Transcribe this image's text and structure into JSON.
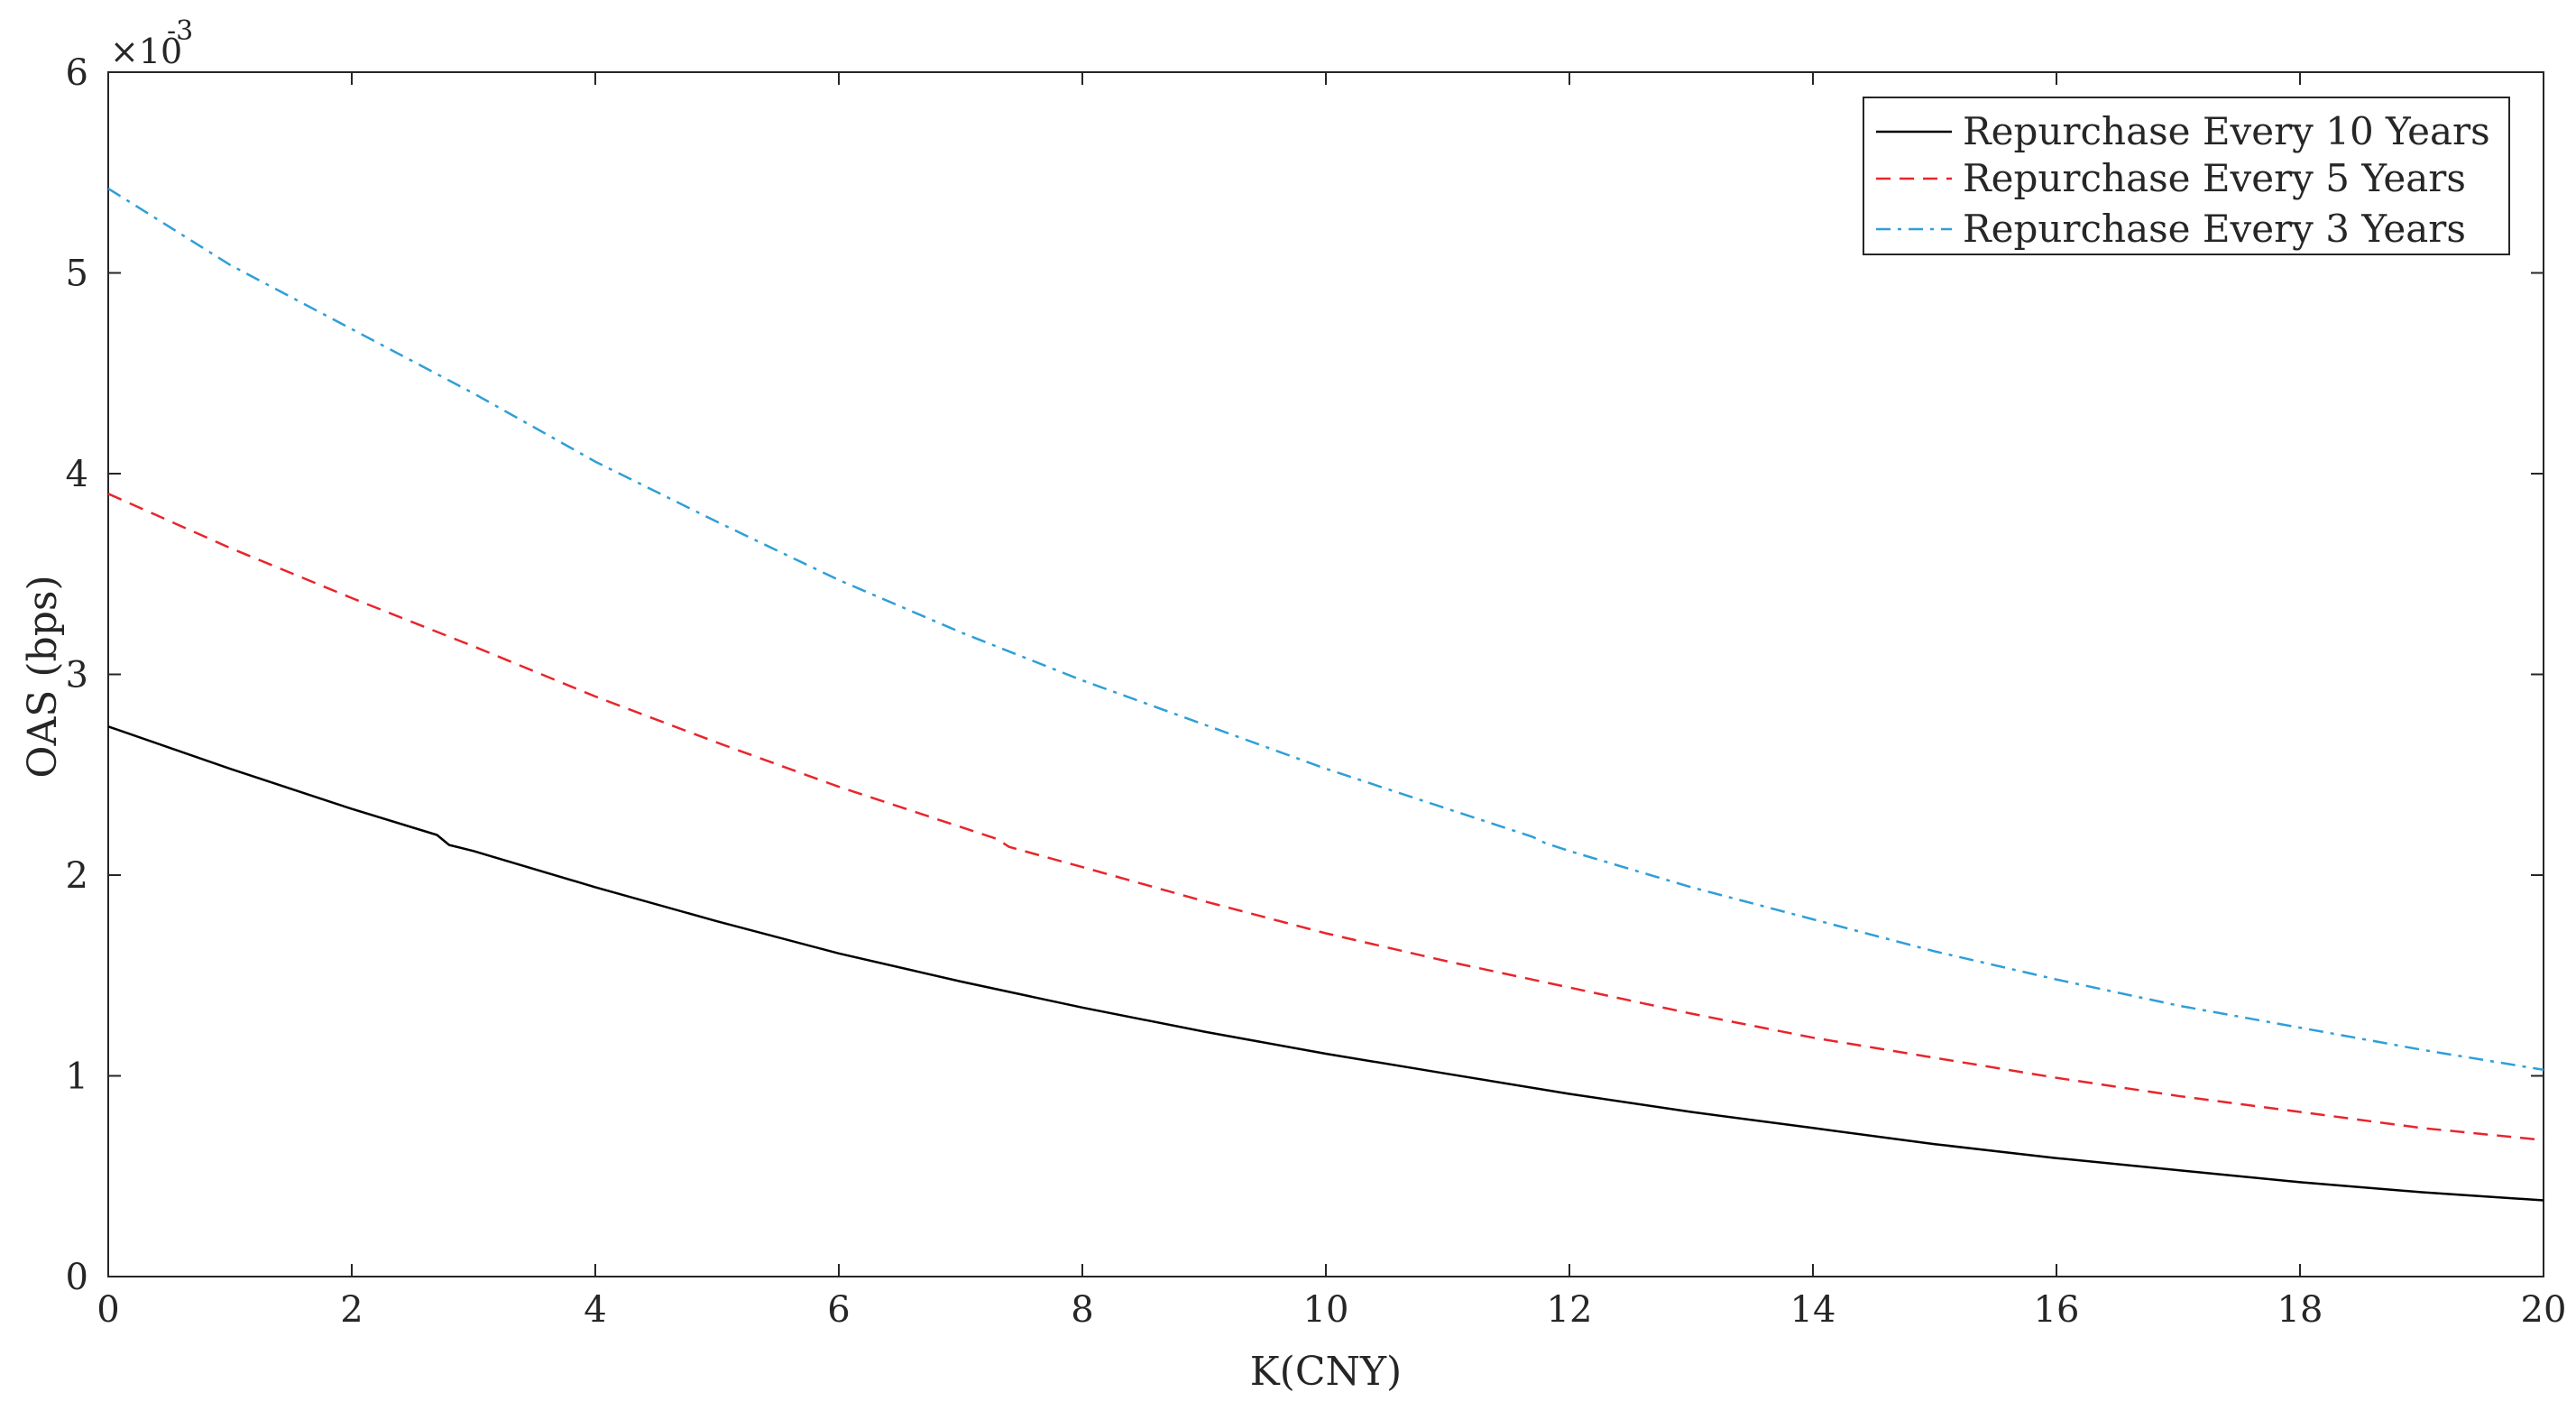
{
  "chart_data": {
    "type": "line",
    "xlabel": "K(CNY)",
    "ylabel": "OAS (bps)",
    "y_exponent_label": "×10",
    "y_exponent_power": "-3",
    "xlim": [
      0,
      20
    ],
    "ylim": [
      0,
      6
    ],
    "x_ticks": [
      "0",
      "2",
      "4",
      "6",
      "8",
      "10",
      "12",
      "14",
      "16",
      "18",
      "20"
    ],
    "y_ticks": [
      "0",
      "1",
      "2",
      "3",
      "4",
      "5",
      "6"
    ],
    "grid": false,
    "legend_position": "top-right",
    "series": [
      {
        "name": "Repurchase Every 10 Years",
        "color": "#000000",
        "style": "solid",
        "x": [
          0,
          1,
          2,
          2.7,
          2.8,
          3,
          4,
          5,
          6,
          7,
          8,
          9,
          10,
          11,
          12,
          13,
          14,
          15,
          16,
          17,
          18,
          19,
          20
        ],
        "y": [
          2.74,
          2.53,
          2.33,
          2.2,
          2.15,
          2.12,
          1.94,
          1.77,
          1.61,
          1.47,
          1.34,
          1.22,
          1.11,
          1.01,
          0.91,
          0.82,
          0.74,
          0.66,
          0.59,
          0.53,
          0.47,
          0.42,
          0.38
        ]
      },
      {
        "name": "Repurchase Every 5 Years",
        "color": "#e8252b",
        "style": "dashed",
        "x": [
          0,
          1,
          2,
          3,
          4,
          5,
          6,
          7,
          7.3,
          7.4,
          8,
          9,
          10,
          11,
          12,
          13,
          14,
          15,
          16,
          17,
          18,
          19,
          20
        ],
        "y": [
          3.9,
          3.63,
          3.38,
          3.14,
          2.89,
          2.66,
          2.44,
          2.24,
          2.18,
          2.14,
          2.04,
          1.87,
          1.71,
          1.57,
          1.44,
          1.31,
          1.19,
          1.09,
          0.99,
          0.9,
          0.82,
          0.74,
          0.68
        ]
      },
      {
        "name": "Repurchase Every 3 Years",
        "color": "#2e9fd8",
        "style": "dashdot",
        "x": [
          0,
          1,
          2,
          3,
          4,
          5,
          6,
          7,
          8,
          9,
          10,
          11,
          11.7,
          11.8,
          12,
          13,
          14,
          15,
          16,
          17,
          18,
          19,
          20
        ],
        "y": [
          5.42,
          5.04,
          4.72,
          4.4,
          4.06,
          3.76,
          3.47,
          3.21,
          2.97,
          2.75,
          2.53,
          2.33,
          2.19,
          2.16,
          2.12,
          1.94,
          1.78,
          1.62,
          1.48,
          1.35,
          1.24,
          1.13,
          1.03
        ]
      }
    ]
  }
}
